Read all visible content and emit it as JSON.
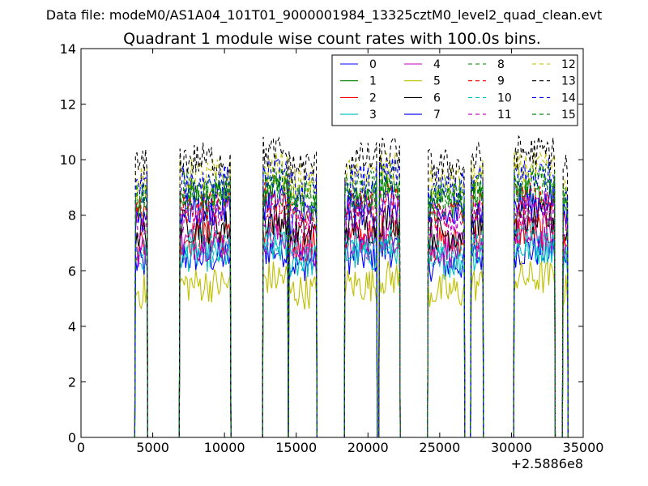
{
  "chart_data": {
    "type": "line",
    "suptitle": "Data file: modeM0/AS1A04_101T01_9000001984_13325cztM0_level2_quad_clean.evt",
    "title": "Quadrant 1 module wise count rates with 100.0s bins.",
    "xlabel": "",
    "ylabel": "",
    "x_offset_label": "+2.5886e8",
    "xlim": [
      0,
      35000
    ],
    "ylim": [
      0,
      14
    ],
    "xticks": [
      0,
      5000,
      10000,
      15000,
      20000,
      25000,
      30000,
      35000
    ],
    "yticks": [
      0,
      2,
      4,
      6,
      8,
      10,
      12,
      14
    ],
    "grid": false,
    "legend_position": "top-right",
    "legend_columns": 4,
    "bin_width_s": 100,
    "segments": [
      {
        "start": 3800,
        "end": 4600
      },
      {
        "start": 6900,
        "end": 10400
      },
      {
        "start": 12700,
        "end": 14400
      },
      {
        "start": 14500,
        "end": 16400
      },
      {
        "start": 18400,
        "end": 20600
      },
      {
        "start": 20800,
        "end": 22200
      },
      {
        "start": 24200,
        "end": 26700
      },
      {
        "start": 27200,
        "end": 28000
      },
      {
        "start": 30200,
        "end": 33000
      },
      {
        "start": 33600,
        "end": 33900
      }
    ],
    "series": [
      {
        "name": "0",
        "color": "#0000ff",
        "dash": "solid",
        "mean_rate": 6.5
      },
      {
        "name": "1",
        "color": "#008000",
        "dash": "solid",
        "mean_rate": 8.6
      },
      {
        "name": "2",
        "color": "#ff0000",
        "dash": "solid",
        "mean_rate": 7.2
      },
      {
        "name": "3",
        "color": "#00bfbf",
        "dash": "solid",
        "mean_rate": 6.6
      },
      {
        "name": "4",
        "color": "#bf00bf",
        "dash": "solid",
        "mean_rate": 7.0
      },
      {
        "name": "5",
        "color": "#bfbf00",
        "dash": "solid",
        "mean_rate": 5.5
      },
      {
        "name": "6",
        "color": "#000000",
        "dash": "solid",
        "mean_rate": 7.6
      },
      {
        "name": "7",
        "color": "#0000ff",
        "dash": "solid",
        "mean_rate": 8.2
      },
      {
        "name": "8",
        "color": "#008000",
        "dash": "dashed",
        "mean_rate": 9.0
      },
      {
        "name": "9",
        "color": "#ff0000",
        "dash": "dashed",
        "mean_rate": 8.3
      },
      {
        "name": "10",
        "color": "#00bfbf",
        "dash": "dashed",
        "mean_rate": 6.9
      },
      {
        "name": "11",
        "color": "#bf00bf",
        "dash": "dashed",
        "mean_rate": 8.0
      },
      {
        "name": "12",
        "color": "#bfbf00",
        "dash": "dashed",
        "mean_rate": 9.4
      },
      {
        "name": "13",
        "color": "#000000",
        "dash": "dashed",
        "mean_rate": 10.0
      },
      {
        "name": "14",
        "color": "#0000ff",
        "dash": "dashed",
        "mean_rate": 9.2
      },
      {
        "name": "15",
        "color": "#008000",
        "dash": "dashed",
        "mean_rate": 8.8
      }
    ]
  }
}
